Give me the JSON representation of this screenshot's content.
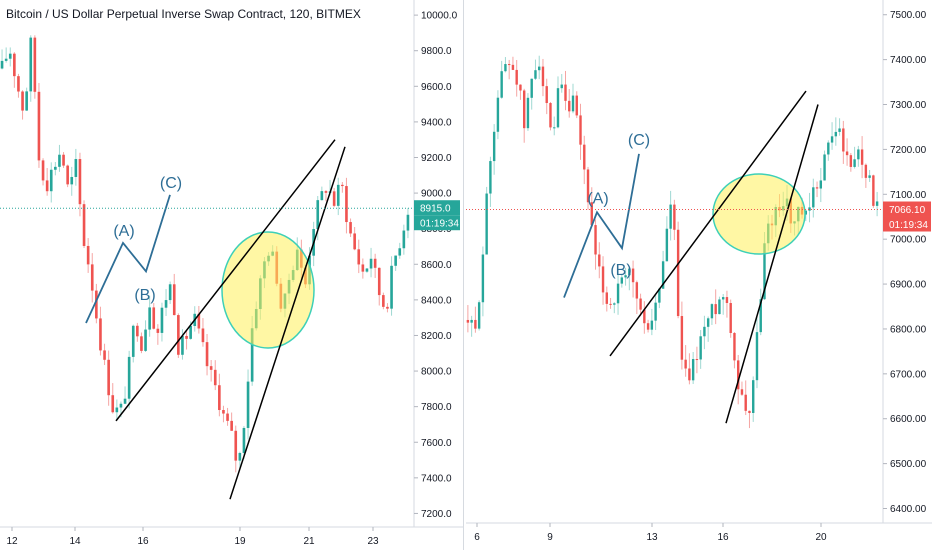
{
  "chart_data": [
    {
      "type": "candlestick",
      "title": "Bitcoin / US Dollar Perpetual Inverse Swap Contract, 120, BITMEX",
      "x_ticks": [
        "12",
        "14",
        "16",
        "19",
        "21",
        "23"
      ],
      "y_ticks": [
        "10000.0",
        "9800.0",
        "9600.0",
        "9400.0",
        "9200.0",
        "9000.0",
        "8800.0",
        "8600.0",
        "8400.0",
        "8200.0",
        "8000.0",
        "7800.0",
        "7600.0",
        "7400.0",
        "7200.0"
      ],
      "ylim": [
        7180,
        10040
      ],
      "last_price": "8915.0",
      "countdown": "01:19:34",
      "up_color": "#26a69a",
      "down_color": "#ef5350",
      "wave_labels": [
        "(A)",
        "(B)",
        "(C)"
      ],
      "price_path": [
        9700,
        9820,
        9620,
        9450,
        9880,
        9200,
        9050,
        9150,
        9250,
        9000,
        9150,
        8750,
        8550,
        8250,
        8000,
        7800,
        7760,
        7950,
        8300,
        8150,
        8400,
        8200,
        8400,
        8500,
        8100,
        8200,
        8300,
        8150,
        8000,
        7900,
        7750,
        7650,
        7450,
        7800,
        8300,
        8500,
        8700,
        8600,
        8300,
        8550,
        8700,
        8450,
        8800,
        8950,
        9050,
        8950,
        9050,
        8800,
        8650,
        8550,
        8650,
        8450,
        8350,
        8600,
        8750,
        8915
      ],
      "wave_path": [
        [
          8270,
          8370
        ],
        [
          8520,
          8720
        ],
        [
          8720,
          8560
        ],
        [
          8800,
          8990
        ]
      ],
      "trend_lower": [
        [
          7720,
          7790
        ],
        [
          9000,
          8890
        ]
      ],
      "trend_upper": [
        [
          7700,
          7880
        ],
        [
          8780,
          9250
        ]
      ]
    },
    {
      "type": "candlestick",
      "y_ticks": [
        "7500.00",
        "7400.00",
        "7300.00",
        "7200.00",
        "7100.00",
        "7000.00",
        "6900.00",
        "6800.00",
        "6700.00",
        "6600.00",
        "6500.00",
        "6400.00"
      ],
      "x_ticks": [
        "6",
        "9",
        "13",
        "16",
        "20"
      ],
      "ylim": [
        6390,
        7515
      ],
      "last_price": "7066.10",
      "countdown": "01:19:34",
      "up_color": "#26a69a",
      "down_color": "#ef5350",
      "wave_labels": [
        "(A)",
        "(B)",
        "(C)"
      ],
      "price_path": [
        6820,
        6780,
        6950,
        7150,
        7300,
        7380,
        7400,
        7360,
        7250,
        7350,
        7420,
        7300,
        7200,
        7350,
        7280,
        7300,
        7200,
        7100,
        6950,
        6900,
        6850,
        6880,
        6900,
        6920,
        6870,
        6800,
        6820,
        6870,
        7000,
        7100,
        6750,
        6680,
        6720,
        6780,
        6820,
        6850,
        6880,
        6850,
        6700,
        6640,
        6620,
        6780,
        6980,
        7050,
        7070,
        7100,
        7020,
        7060,
        7040,
        7100,
        7150,
        7200,
        7250,
        7230,
        7150,
        7200,
        7180,
        7120,
        7066
      ],
      "wave_path": [
        [
          6860,
          7000
        ],
        [
          7080,
          6980
        ],
        [
          6980,
          7020
        ],
        [
          7180,
          7220
        ]
      ],
      "trend_lower": [
        [
          6740,
          6740
        ],
        [
          7320,
          7290
        ]
      ],
      "trend_upper": [
        [
          6590,
          6570
        ],
        [
          7320,
          7280
        ]
      ]
    }
  ]
}
